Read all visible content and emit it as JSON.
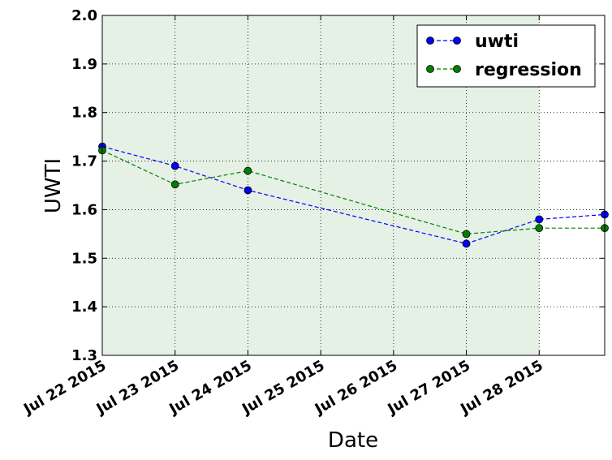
{
  "chart_data": {
    "type": "line",
    "title": "",
    "xlabel": "Date",
    "ylabel": "UWTI",
    "ylim": [
      1.3,
      2.0
    ],
    "yticks": [
      "1.3",
      "1.4",
      "1.5",
      "1.6",
      "1.7",
      "1.8",
      "1.9",
      "2.0"
    ],
    "x_range": [
      0,
      6.9
    ],
    "xticks": [
      {
        "value": 0,
        "label": "Jul 22 2015"
      },
      {
        "value": 1,
        "label": "Jul 23 2015"
      },
      {
        "value": 2,
        "label": "Jul 24 2015"
      },
      {
        "value": 3,
        "label": "Jul 25 2015"
      },
      {
        "value": 4,
        "label": "Jul 26 2015"
      },
      {
        "value": 5,
        "label": "Jul 27 2015"
      },
      {
        "value": 6,
        "label": "Jul 28 2015"
      }
    ],
    "x_units": "days since Jul 22 2015",
    "grid": true,
    "shaded_region": {
      "from": 0,
      "to": 6,
      "color": "#e4f1e4"
    },
    "legend_position": "top-right",
    "series": [
      {
        "name": "uwti",
        "color": "#0000ff",
        "x": [
          0,
          1,
          2,
          5,
          6,
          6.9
        ],
        "values": [
          1.73,
          1.69,
          1.64,
          1.53,
          1.58,
          1.59
        ]
      },
      {
        "name": "regression",
        "color": "#008000",
        "x": [
          0,
          1,
          2,
          5,
          6,
          6.9
        ],
        "values": [
          1.722,
          1.652,
          1.68,
          1.55,
          1.562,
          1.562
        ]
      }
    ]
  }
}
